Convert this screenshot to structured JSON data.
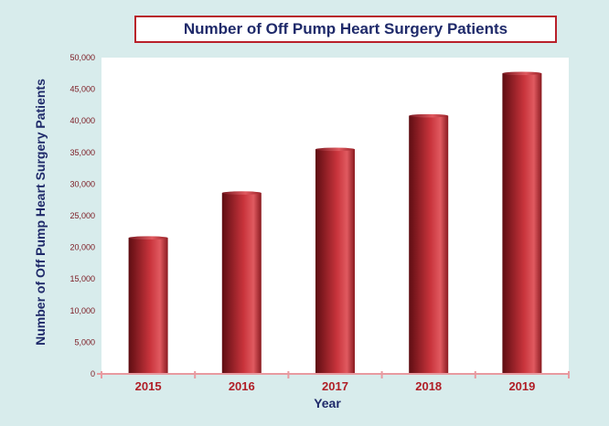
{
  "chart_data": {
    "type": "bar",
    "title": "Number of Off Pump Heart Surgery Patients",
    "xlabel": "Year",
    "ylabel": "Number of Off Pump Heart Surgery Patients",
    "categories": [
      "2015",
      "2016",
      "2017",
      "2018",
      "2019"
    ],
    "values": [
      21500,
      28600,
      35500,
      40800,
      47500
    ],
    "ylim": [
      0,
      50000
    ],
    "yticks": [
      "0",
      "5,000",
      "10,000",
      "15,000",
      "20,000",
      "25,000",
      "30,000",
      "35,000",
      "40,000",
      "45,000",
      "50,000"
    ],
    "grid": false,
    "legend": "none",
    "colors": {
      "bar_dark": "#5e0d12",
      "bar_mid": "#c9343c",
      "bar_light": "#e05a60",
      "title_text": "#1f2a6a",
      "title_border": "#b8202a",
      "tick_text": "#7a1820",
      "category_text": "#b01e26",
      "background": "#d8ecec",
      "plot_area": "#ffffff"
    }
  }
}
